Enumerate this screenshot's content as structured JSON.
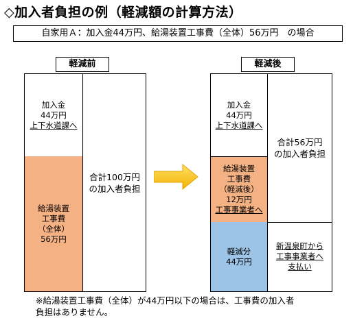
{
  "title": "◇加入者負担の例（軽減額の計算方法）",
  "case_text": "自家用Ａ：加入金44万円、給湯装置工事費（全体）56万円　の場合",
  "before": {
    "label": "軽減前",
    "fee_lines": [
      "加入金",
      "44万円"
    ],
    "fee_dest": "上下水道課へ",
    "equip_lines": [
      "給湯装置",
      "工事費",
      "（全体）",
      "56万円"
    ],
    "total_lines": [
      "合計100万円",
      "の加入者負担"
    ]
  },
  "after": {
    "label": "軽減後",
    "fee_lines": [
      "加入金",
      "44万円"
    ],
    "fee_dest": "上下水道課へ",
    "equip_lines": [
      "給湯装置",
      "工事費",
      "（軽減後）",
      "12万円"
    ],
    "equip_dest": "工事事業者へ",
    "reduction_lines": [
      "軽減分",
      "44万円"
    ],
    "total_lines": [
      "合計56万円",
      "の加入者負担"
    ],
    "pay_lines": [
      "新温泉町から",
      "工事事業者へ",
      "支払い"
    ]
  },
  "note_lines": [
    "※給湯装置工事費（全体）が44万円以下の場合は、工事費の加入者",
    "負担はありません。"
  ],
  "colors": {
    "orange": "#f4b183",
    "blue": "#9dc3e6",
    "arrow_start": "#ffe066",
    "arrow_end": "#f2b200"
  }
}
